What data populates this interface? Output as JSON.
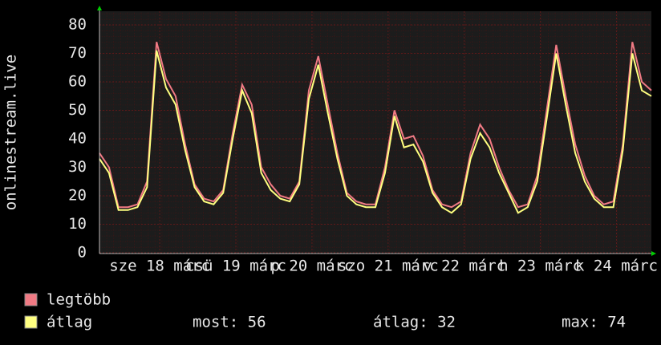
{
  "chart_data": {
    "type": "line",
    "y_label": "onlinestream.live",
    "x": [
      0,
      3,
      6,
      9,
      12,
      15,
      18,
      21,
      24,
      27,
      30,
      33,
      36,
      39,
      42,
      45,
      48,
      51,
      54,
      57,
      60,
      63,
      66,
      69,
      72,
      75,
      78,
      81,
      84,
      87,
      90,
      93,
      96,
      99,
      102,
      105,
      108,
      111,
      114,
      117,
      120,
      123,
      126,
      129,
      132,
      135,
      138,
      141,
      144,
      147,
      150,
      153,
      156,
      159,
      162,
      165,
      168,
      171,
      174
    ],
    "xlim": [
      0,
      174
    ],
    "xticks": [
      {
        "value": 19,
        "label": "sze 18 márc"
      },
      {
        "value": 43,
        "label": "csü 19 márc"
      },
      {
        "value": 67,
        "label": "p 20 márc"
      },
      {
        "value": 91,
        "label": "szo 21 márc"
      },
      {
        "value": 115,
        "label": "v 22 márc"
      },
      {
        "value": 139,
        "label": "h 23 márc"
      },
      {
        "value": 163,
        "label": "k 24 márc"
      }
    ],
    "ylim": [
      0,
      80
    ],
    "yticks": [
      0,
      10,
      20,
      30,
      40,
      50,
      60,
      70,
      80
    ],
    "grid": true,
    "series": [
      {
        "name": "legtöbb",
        "color": "#f07a84",
        "values": [
          35,
          30,
          16,
          16,
          17,
          25,
          74,
          61,
          55,
          38,
          24,
          19,
          18,
          22,
          42,
          59,
          52,
          30,
          24,
          20,
          19,
          25,
          57,
          69,
          52,
          35,
          21,
          18,
          17,
          17,
          30,
          50,
          40,
          41,
          34,
          22,
          17,
          16,
          18,
          35,
          45,
          40,
          30,
          22,
          16,
          17,
          27,
          50,
          73,
          55,
          38,
          27,
          20,
          17,
          18,
          38,
          74,
          60,
          57
        ]
      },
      {
        "name": "átlag",
        "color": "#ffff80",
        "values": [
          33,
          28,
          15,
          15,
          16,
          23,
          71,
          58,
          52,
          36,
          23,
          18,
          17,
          21,
          40,
          57,
          49,
          28,
          22,
          19,
          18,
          24,
          54,
          66,
          49,
          33,
          20,
          17,
          16,
          16,
          28,
          48,
          37,
          38,
          32,
          21,
          16,
          14,
          17,
          33,
          42,
          37,
          28,
          21,
          14,
          16,
          25,
          47,
          70,
          52,
          35,
          25,
          19,
          16,
          16,
          36,
          70,
          57,
          55
        ]
      }
    ],
    "stats": [
      "most: 56",
      "átlag: 32",
      "max: 74"
    ]
  }
}
